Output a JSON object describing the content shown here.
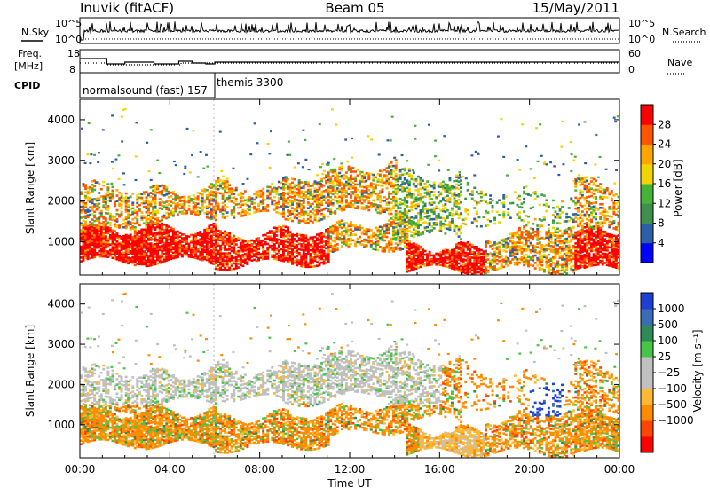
{
  "header": {
    "station": "Inuvik (fitACF)",
    "beam": "Beam 05",
    "date": "15/May/2011"
  },
  "noise_panel": {
    "left_label": "N.Sky",
    "left_ticks": [
      "10^5",
      "10^0"
    ],
    "right_label": "N.Search",
    "right_ticks": [
      "10^5",
      "10^0"
    ]
  },
  "freq_panel": {
    "left_label_1": "Freq.",
    "left_label_2": "[MHz]",
    "left_ticks": [
      "18",
      "8"
    ],
    "right_label": "Nave",
    "right_ticks": [
      "60",
      "0"
    ]
  },
  "cpid_panel": {
    "label": "CPID",
    "entries": [
      "normalsound (fast) 157",
      "themis 3300"
    ]
  },
  "colors": {
    "power_scale": [
      "#0000ff",
      "#2c5fa6",
      "#3f8f4f",
      "#44b337",
      "#f2d400",
      "#ffa500",
      "#ff5500",
      "#ff0000"
    ],
    "velocity_scale": [
      "#ff0000",
      "#ff4500",
      "#ff8c00",
      "#ffb833",
      "#c0c0c0",
      "#c0c0c0",
      "#46c646",
      "#2e8b57",
      "#3c6db4",
      "#1f3fd4"
    ]
  },
  "chart_data": [
    {
      "type": "heatmap",
      "title": "",
      "ylabel": "Slant Range [km]",
      "ylim": [
        180,
        4500
      ],
      "yticks": [
        "1000",
        "2000",
        "3000",
        "4000"
      ],
      "xlabel": "",
      "colorbar_label": "Power [dB]",
      "colorbar_ticks": [
        "4",
        "8",
        "12",
        "16",
        "20",
        "24",
        "28"
      ]
    },
    {
      "type": "heatmap",
      "title": "",
      "ylabel": "Slant Range [km]",
      "ylim": [
        180,
        4500
      ],
      "yticks": [
        "1000",
        "2000",
        "3000",
        "4000"
      ],
      "xlabel": "Time UT",
      "xticks": [
        "00:00",
        "04:00",
        "08:00",
        "12:00",
        "16:00",
        "20:00",
        "00:00"
      ],
      "colorbar_label": "Velocity [m s⁻¹]",
      "colorbar_ticks": [
        "1000",
        "500",
        "100",
        "25",
        "−25",
        "−100",
        "−500",
        "−1000"
      ]
    }
  ]
}
